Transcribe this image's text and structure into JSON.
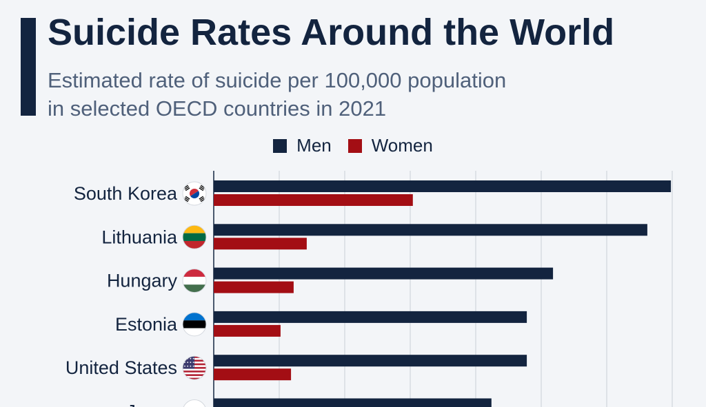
{
  "header": {
    "title": "Suicide Rates Around the World",
    "subtitle_line1": "Estimated rate of suicide per 100,000 population",
    "subtitle_line2": "in selected OECD countries in 2021"
  },
  "legend": {
    "men_label": "Men",
    "women_label": "Women"
  },
  "colors": {
    "men": "#13243f",
    "women": "#a30e14",
    "grid": "#c9ced6",
    "axis": "#13243f"
  },
  "chart_data": {
    "type": "bar",
    "orientation": "horizontal",
    "title": "Suicide Rates Around the World",
    "subtitle": "Estimated rate of suicide per 100,000 population in selected OECD countries in 2021",
    "categories": [
      "South Korea",
      "Lithuania",
      "Hungary",
      "Estonia",
      "United States",
      "Japan"
    ],
    "category_icons": [
      "south-korea-flag-icon",
      "lithuania-flag-icon",
      "hungary-flag-icon",
      "estonia-flag-icon",
      "united-states-flag-icon",
      "japan-flag-icon"
    ],
    "series": [
      {
        "name": "Men",
        "values": [
          34.9,
          33.1,
          25.9,
          23.9,
          23.9,
          21.2
        ]
      },
      {
        "name": "Women",
        "values": [
          15.2,
          7.1,
          6.1,
          5.1,
          5.9,
          null
        ]
      }
    ],
    "xlim": [
      0,
      35
    ],
    "grid": true,
    "legend_position": "top-center"
  }
}
